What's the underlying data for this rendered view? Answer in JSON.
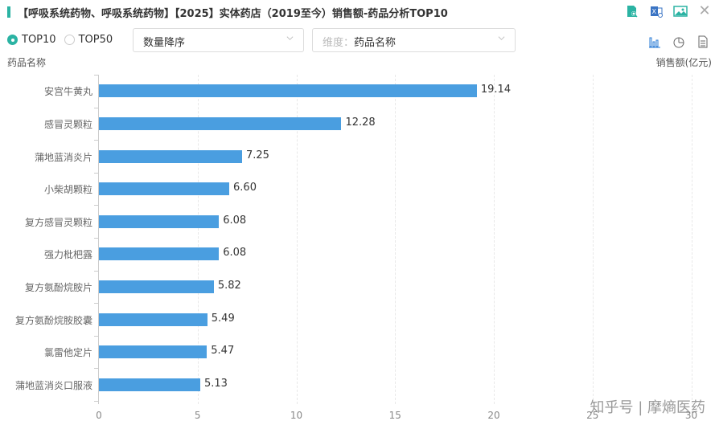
{
  "header": {
    "title": "【呼吸系统药物、呼吸系统药物】【2025】实体药店（2019至今）销售额-药品分析TOP10",
    "icons": [
      "search-doc-icon",
      "excel-export-icon",
      "image-export-icon",
      "close-icon"
    ],
    "accent_color": "#2bb3a3"
  },
  "controls": {
    "radio": [
      {
        "label": "TOP10",
        "selected": true
      },
      {
        "label": "TOP50",
        "selected": false
      }
    ],
    "sort_select": {
      "value": "数量降序"
    },
    "dimension_select": {
      "prefix": "维度：",
      "value": "药品名称"
    },
    "view_icons": [
      "bar-chart-icon",
      "pie-chart-icon",
      "table-icon"
    ]
  },
  "axis_titles": {
    "y": "药品名称",
    "x": "销售额(亿元)"
  },
  "chart_data": {
    "type": "bar",
    "orientation": "horizontal",
    "title": "【呼吸系统药物、呼吸系统药物】【2025】实体药店（2019至今）销售额-药品分析TOP10",
    "xlabel": "销售额(亿元)",
    "ylabel": "药品名称",
    "categories": [
      "安宫牛黄丸",
      "感冒灵颗粒",
      "蒲地蓝消炎片",
      "小柴胡颗粒",
      "复方感冒灵颗粒",
      "强力枇杷露",
      "复方氨酚烷胺片",
      "复方氨酚烷胺胶囊",
      "氯雷他定片",
      "蒲地蓝消炎口服液"
    ],
    "values": [
      19.14,
      12.28,
      7.25,
      6.6,
      6.08,
      6.08,
      5.82,
      5.49,
      5.47,
      5.13
    ],
    "value_labels": [
      "19.14",
      "12.28",
      "7.25",
      "6.60",
      "6.08",
      "6.08",
      "5.82",
      "5.49",
      "5.47",
      "5.13"
    ],
    "xticks": [
      "0",
      "5",
      "10",
      "15",
      "20",
      "25",
      "30"
    ],
    "xlim": [
      0,
      30
    ],
    "grid": true,
    "bar_color": "#4a9ee0"
  },
  "watermark": "知乎号 | 摩熵医药"
}
